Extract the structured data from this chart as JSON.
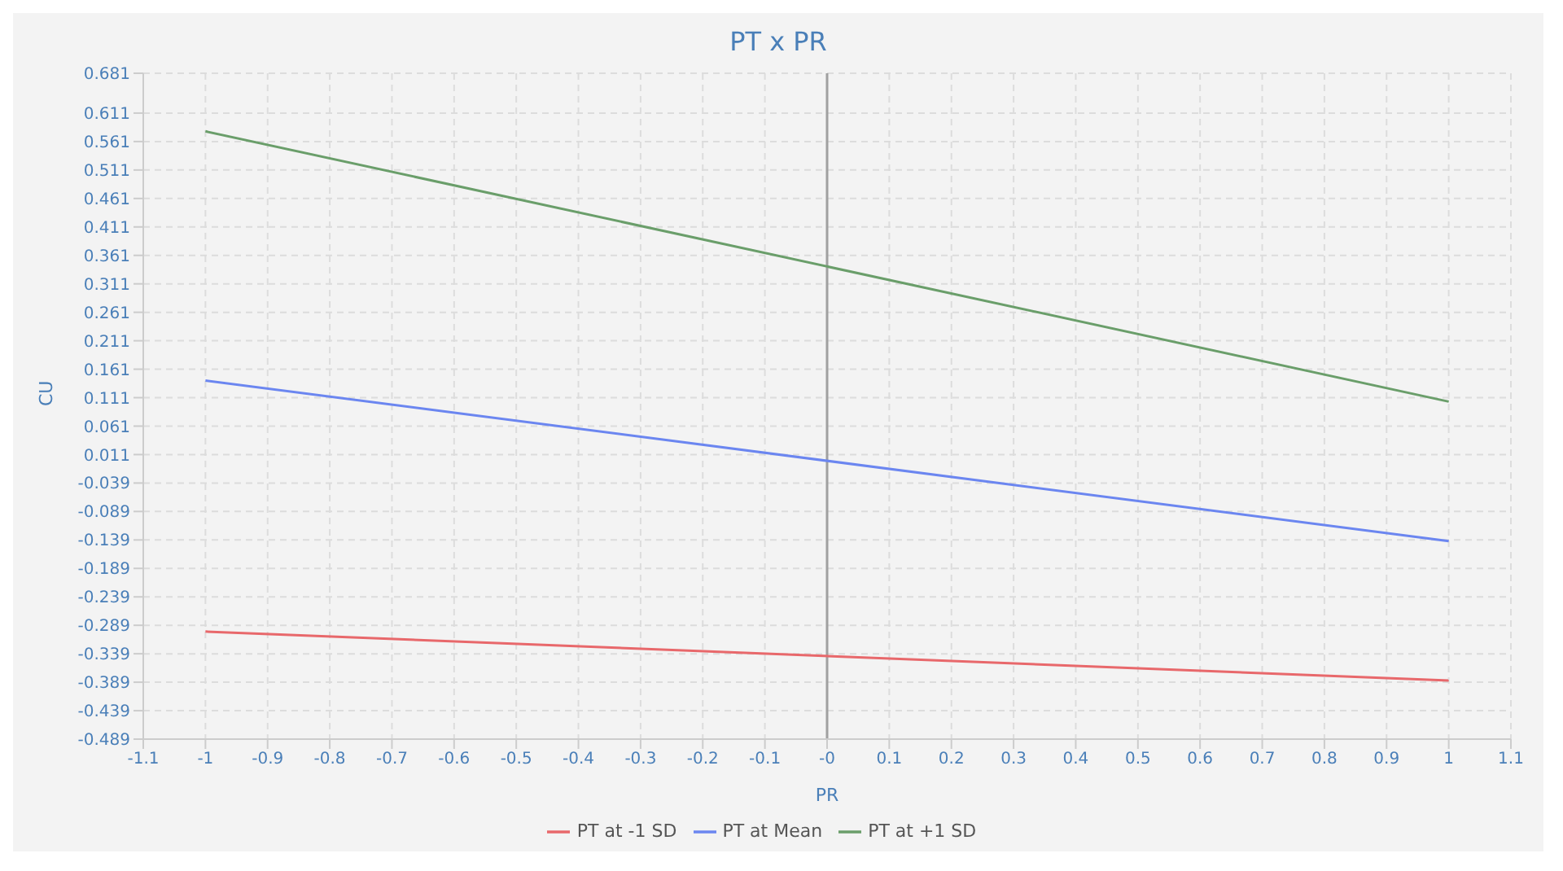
{
  "chart_data": {
    "type": "line",
    "title": "PT x PR",
    "xlabel": "PR",
    "ylabel": "CU",
    "x": [
      -1,
      1
    ],
    "series": [
      {
        "name": "PT at -1 SD",
        "color": "#e8686b",
        "values": [
          -0.3,
          -0.386
        ]
      },
      {
        "name": "PT at Mean",
        "color": "#6b86f0",
        "values": [
          0.141,
          -0.141
        ]
      },
      {
        "name": "PT at +1 SD",
        "color": "#6a9e6a",
        "values": [
          0.579,
          0.104
        ]
      }
    ],
    "xlim": [
      -1.1,
      1.1
    ],
    "xticks": [
      -1.1,
      -1,
      -0.9,
      -0.8,
      -0.7,
      -0.6,
      -0.5,
      -0.4,
      -0.3,
      -0.2,
      -0.1,
      {
        "value": 0,
        "label": "-0"
      },
      0.1,
      0.2,
      0.3,
      0.4,
      0.5,
      0.6,
      0.7,
      0.8,
      0.9,
      1,
      1.1
    ],
    "ylim": [
      -0.489,
      0.681
    ],
    "yticks": [
      -0.489,
      -0.439,
      -0.389,
      -0.339,
      -0.289,
      -0.239,
      -0.189,
      -0.139,
      -0.089,
      -0.039,
      0.011,
      0.061,
      0.111,
      0.161,
      0.211,
      0.261,
      0.311,
      0.361,
      0.411,
      0.461,
      0.511,
      0.561,
      0.611,
      0.681
    ],
    "ref_lines": [
      {
        "axis": "x",
        "value": 0,
        "color": "#a0a0a0"
      }
    ],
    "grid": true,
    "legend": "bottom",
    "marker": "none",
    "line_style": "solid"
  }
}
